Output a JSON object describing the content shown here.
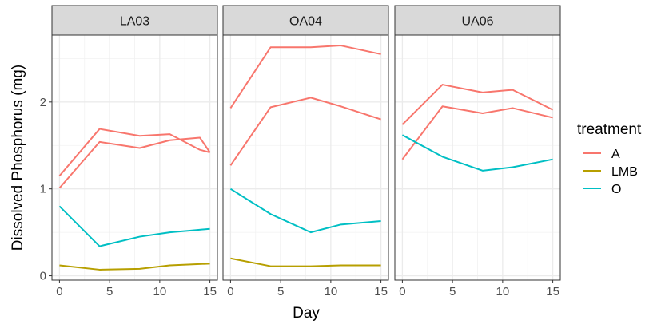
{
  "chart_data": {
    "type": "line",
    "facet_variable": "site",
    "facets": [
      "LA03",
      "OA04",
      "UA06"
    ],
    "xlabel": "Day",
    "ylabel": "Dissolved Phosphorus (mg)",
    "xlim": [
      -0.75,
      15.75
    ],
    "ylim": [
      -0.05,
      2.77
    ],
    "x_ticks": [
      0,
      5,
      10,
      15
    ],
    "y_ticks": [
      0,
      1,
      2
    ],
    "grid": true,
    "legend": {
      "title": "treatment",
      "position": "right",
      "entries": [
        {
          "label": "A",
          "color": "#F8766D"
        },
        {
          "label": "LMB",
          "color": "#B79F00"
        },
        {
          "label": "O",
          "color": "#00BFC4"
        }
      ]
    },
    "panels": [
      {
        "facet": "LA03",
        "series": [
          {
            "treatment": "A",
            "x": [
              0,
              4,
              8,
              11,
              14,
              15
            ],
            "y": [
              1.15,
              1.69,
              1.61,
              1.63,
              1.45,
              1.42
            ]
          },
          {
            "treatment": "A",
            "x": [
              0,
              4,
              8,
              11,
              14,
              15
            ],
            "y": [
              1.01,
              1.54,
              1.47,
              1.56,
              1.59,
              1.42
            ]
          },
          {
            "treatment": "LMB",
            "x": [
              0,
              4,
              8,
              11,
              15
            ],
            "y": [
              0.12,
              0.07,
              0.08,
              0.12,
              0.14
            ]
          },
          {
            "treatment": "O",
            "x": [
              0,
              4,
              8,
              11,
              13,
              15
            ],
            "y": [
              0.8,
              0.34,
              0.45,
              0.5,
              0.52,
              0.54
            ]
          }
        ]
      },
      {
        "facet": "OA04",
        "series": [
          {
            "treatment": "A",
            "x": [
              0,
              4,
              8,
              11,
              15
            ],
            "y": [
              1.93,
              2.63,
              2.63,
              2.65,
              2.55
            ]
          },
          {
            "treatment": "A",
            "x": [
              0,
              4,
              8,
              11,
              15
            ],
            "y": [
              1.27,
              1.94,
              2.05,
              1.95,
              1.8
            ]
          },
          {
            "treatment": "LMB",
            "x": [
              0,
              4,
              8,
              11,
              15
            ],
            "y": [
              0.2,
              0.11,
              0.11,
              0.12,
              0.12
            ]
          },
          {
            "treatment": "O",
            "x": [
              0,
              4,
              8,
              11,
              15
            ],
            "y": [
              1.0,
              0.71,
              0.5,
              0.59,
              0.63
            ]
          }
        ]
      },
      {
        "facet": "UA06",
        "series": [
          {
            "treatment": "A",
            "x": [
              0,
              4,
              8,
              11,
              15
            ],
            "y": [
              1.74,
              2.2,
              2.11,
              2.14,
              1.91
            ]
          },
          {
            "treatment": "A",
            "x": [
              0,
              4,
              8,
              11,
              15
            ],
            "y": [
              1.34,
              1.95,
              1.87,
              1.93,
              1.82
            ]
          },
          {
            "treatment": "O",
            "x": [
              0,
              4,
              8,
              11,
              15
            ],
            "y": [
              1.62,
              1.37,
              1.21,
              1.25,
              1.34
            ]
          }
        ]
      }
    ]
  }
}
